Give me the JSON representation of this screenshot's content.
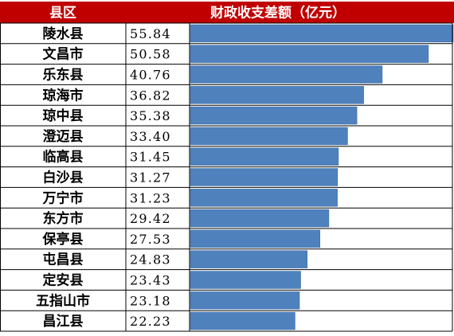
{
  "colors": {
    "header_bg": "#c00000",
    "header_text": "#ffffff",
    "bar": "#4f81bd",
    "grid": "#000000"
  },
  "chart_data": {
    "type": "table",
    "headers": [
      "县区",
      "财政收支差额（亿元）"
    ],
    "categories": [
      "陵水县",
      "文昌市",
      "乐东县",
      "琼海市",
      "琼中县",
      "澄迈县",
      "临高县",
      "白沙县",
      "万宁市",
      "东方市",
      "保亭县",
      "屯昌县",
      "定安县",
      "五指山市",
      "昌江县"
    ],
    "value_labels": [
      "55.84",
      "50.58",
      "40.76",
      "36.82",
      "35.38",
      "33.40",
      "31.45",
      "31.27",
      "31.23",
      "29.42",
      "27.53",
      "24.83",
      "23.43",
      "23.18",
      "22.23"
    ],
    "values": [
      55.84,
      50.58,
      40.76,
      36.82,
      35.38,
      33.4,
      31.45,
      31.27,
      31.23,
      29.42,
      27.53,
      24.83,
      23.43,
      23.18,
      22.23
    ],
    "xlim": [
      0,
      55.84
    ]
  }
}
